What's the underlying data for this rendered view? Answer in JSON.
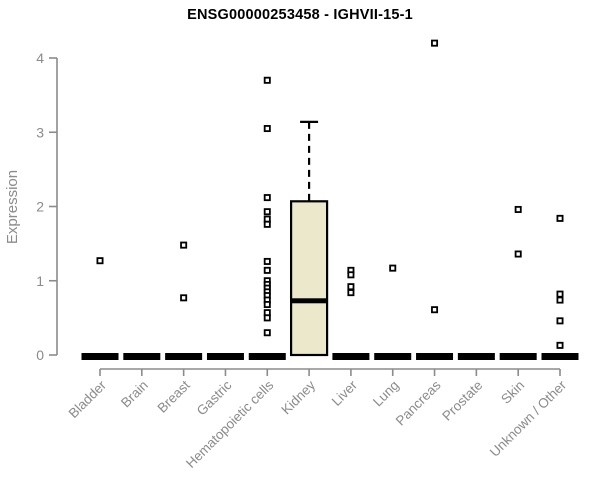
{
  "chart_data": {
    "type": "boxplot",
    "title": "ENSG00000253458 - IGHVII-15-1",
    "ylabel": "Expression",
    "xlabel": "",
    "ylim": [
      0,
      4
    ],
    "yticks": [
      0,
      1,
      2,
      3,
      4
    ],
    "grid": false,
    "legend": "none",
    "categories": [
      "Bladder",
      "Brain",
      "Breast",
      "Gastric",
      "Hematopoietic cells",
      "Kidney",
      "Liver",
      "Lung",
      "Pancreas",
      "Prostate",
      "Skin",
      "Unknown / Other"
    ],
    "series": [
      {
        "name": "Bladder",
        "q1": 0,
        "median": 0,
        "q3": 0,
        "whisker_low": 0,
        "whisker_high": 0,
        "outliers": [
          1.27
        ]
      },
      {
        "name": "Brain",
        "q1": 0,
        "median": 0,
        "q3": 0,
        "whisker_low": 0,
        "whisker_high": 0,
        "outliers": []
      },
      {
        "name": "Breast",
        "q1": 0,
        "median": 0,
        "q3": 0,
        "whisker_low": 0,
        "whisker_high": 0,
        "outliers": [
          1.48,
          0.77
        ]
      },
      {
        "name": "Gastric",
        "q1": 0,
        "median": 0,
        "q3": 0,
        "whisker_low": 0,
        "whisker_high": 0,
        "outliers": []
      },
      {
        "name": "Hematopoietic cells",
        "q1": 0,
        "median": 0,
        "q3": 0,
        "whisker_low": 0,
        "whisker_high": 0,
        "outliers": [
          3.7,
          3.05,
          2.12,
          1.93,
          1.83,
          1.76,
          1.26,
          1.14,
          1.0,
          0.95,
          0.9,
          0.85,
          0.8,
          0.74,
          0.68,
          0.57,
          0.5,
          0.3
        ]
      },
      {
        "name": "Kidney",
        "q1": 0,
        "median": 0.73,
        "q3": 2.07,
        "whisker_low": 0,
        "whisker_high": 3.14,
        "outliers": []
      },
      {
        "name": "Liver",
        "q1": 0,
        "median": 0,
        "q3": 0,
        "whisker_low": 0,
        "whisker_high": 0,
        "outliers": [
          1.14,
          1.08,
          0.92,
          0.84
        ]
      },
      {
        "name": "Lung",
        "q1": 0,
        "median": 0,
        "q3": 0,
        "whisker_low": 0,
        "whisker_high": 0,
        "outliers": [
          1.17
        ]
      },
      {
        "name": "Pancreas",
        "q1": 0,
        "median": 0,
        "q3": 0,
        "whisker_low": 0,
        "whisker_high": 0,
        "outliers": [
          4.2,
          0.61
        ]
      },
      {
        "name": "Prostate",
        "q1": 0,
        "median": 0,
        "q3": 0,
        "whisker_low": 0,
        "whisker_high": 0,
        "outliers": []
      },
      {
        "name": "Skin",
        "q1": 0,
        "median": 0,
        "q3": 0,
        "whisker_low": 0,
        "whisker_high": 0,
        "outliers": [
          1.96,
          1.36
        ]
      },
      {
        "name": "Unknown / Other",
        "q1": 0,
        "median": 0,
        "q3": 0,
        "whisker_low": 0,
        "whisker_high": 0,
        "outliers": [
          1.84,
          0.82,
          0.74,
          0.46,
          0.13
        ]
      }
    ],
    "colors": {
      "box_fill": "#ece8cc",
      "box_stroke": "#000000",
      "median_color": "#000000",
      "zero_bar_color": "#000000",
      "point_stroke": "#000000",
      "point_fill": "#ffffff",
      "axis_color": "#8b8b8b",
      "tick_label_color": "#8b8b8b",
      "category_label_color": "#8b8b8b",
      "title_color": "#000000",
      "background": "#ffffff"
    }
  }
}
